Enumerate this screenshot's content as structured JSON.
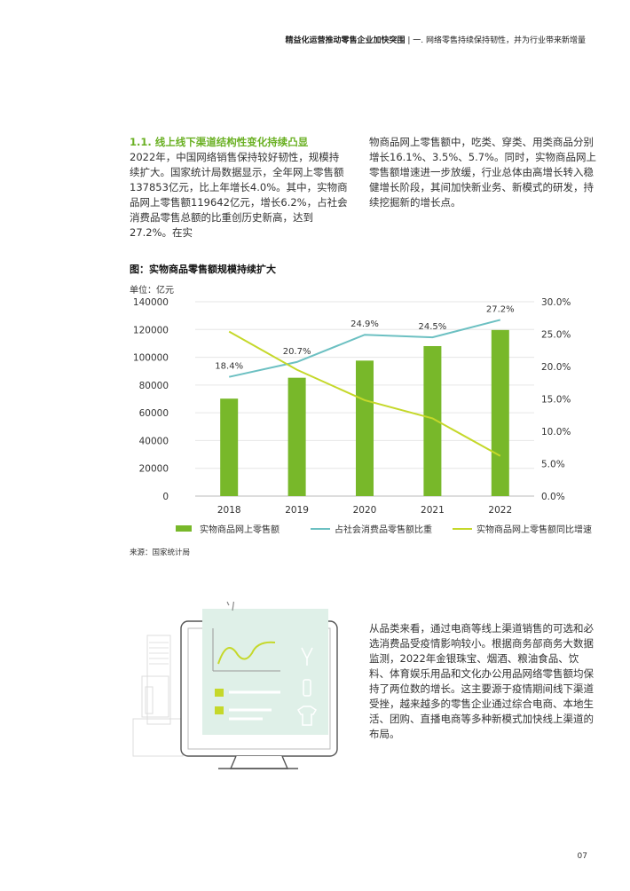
{
  "header": {
    "report_title": "精益化运营推动零售企业加快突围",
    "separator": "|",
    "section_title": "一. 网络零售持续保持韧性，并为行业带来新增量"
  },
  "section": {
    "heading": "1.1. 线上线下渠道结构性变化持续凸显",
    "para1": "2022年，中国网络销售保持较好韧性，规模持续扩大。国家统计局数据显示，全年网上零售额137853亿元，比上年增长4.0%。其中，实物商品网上零售额119642亿元，增长6.2%，占社会消费品零售总额的比重创历史新高，达到27.2%。在实物商品网上零售额中，吃类、穿类、用类商品分别增长16.1%、3.5%、5.7%。同时，实物商品网上零售额增速进一步放缓，行业总体由高增长转入稳健增长阶段，其间加快新业务、新模式的研发，持续挖掘新的增长点。"
  },
  "chart": {
    "title": "图：实物商品零售额规模持续扩大",
    "unit": "单位：亿元",
    "source": "来源：国家统计局"
  },
  "chart_data": {
    "type": "bar",
    "categories": [
      "2018",
      "2019",
      "2020",
      "2021",
      "2022"
    ],
    "series": [
      {
        "name": "实物商品网上零售额",
        "type": "bar",
        "axis": "left",
        "color": "#78b82a",
        "values": [
          70198,
          85239,
          97590,
          108042,
          119642
        ]
      },
      {
        "name": "占社会消费品零售额比重",
        "type": "line",
        "axis": "right",
        "color": "#6cc0c2",
        "values": [
          18.4,
          20.7,
          24.9,
          24.5,
          27.2
        ],
        "labels": [
          "18.4%",
          "20.7%",
          "24.9%",
          "24.5%",
          "27.2%"
        ]
      },
      {
        "name": "实物商品网上零售额同比增速",
        "type": "line",
        "axis": "right",
        "color": "#c5d82a",
        "values": [
          25.4,
          19.5,
          14.8,
          12.0,
          6.2
        ]
      }
    ],
    "ylim": [
      0,
      140000
    ],
    "y_ticks": [
      "0",
      "20000",
      "40000",
      "60000",
      "80000",
      "100000",
      "120000",
      "140000"
    ],
    "y2lim": [
      0,
      30
    ],
    "y2_ticks": [
      "0.0%",
      "5.0%",
      "10.0%",
      "15.0%",
      "20.0%",
      "25.0%",
      "30.0%"
    ],
    "grid": true,
    "legend_position": "bottom"
  },
  "para3": "从品类来看，通过电商等线上渠道销售的可选和必选消费品受疫情影响较小。根据商务部商务大数据监测，2022年金银珠宝、烟酒、粮油食品、饮料、体育娱乐用品和文化办公用品网络零售额均保持了两位数的增长。这主要源于疫情期间线下渠道受挫，越来越多的零售企业通过综合电商、本地生活、团购、直播电商等多种新模式加快线上渠道的布局。",
  "page_number": "07",
  "colors": {
    "accent": "#6ab023",
    "bar": "#78b82a",
    "teal": "#6cc0c2",
    "yellowgreen": "#c5d82a"
  }
}
